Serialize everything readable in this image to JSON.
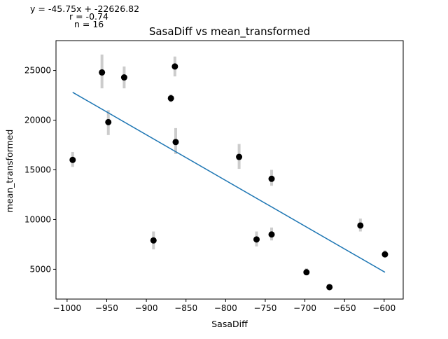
{
  "chart_data": {
    "type": "scatter",
    "title": "SasaDiff vs mean_transformed",
    "xlabel": "SasaDiff",
    "ylabel": "mean_transformed",
    "annotations": [
      "y = -45.75x + -22626.82",
      "r = -0.74",
      "n = 16"
    ],
    "xlim": [
      -1014,
      -576
    ],
    "ylim": [
      2000,
      28000
    ],
    "xticks": [
      -1000,
      -950,
      -900,
      -850,
      -800,
      -750,
      -700,
      -650,
      -600
    ],
    "xtick_labels": [
      "−1000",
      "−950",
      "−900",
      "−850",
      "−800",
      "−750",
      "−700",
      "−650",
      "−600"
    ],
    "yticks": [
      5000,
      10000,
      15000,
      20000,
      25000
    ],
    "ytick_labels": [
      "5000",
      "10000",
      "15000",
      "20000",
      "25000"
    ],
    "grid": false,
    "points": [
      {
        "x": -993,
        "y": 16000,
        "err_low": 15300,
        "err_high": 16800
      },
      {
        "x": -956,
        "y": 24800,
        "err_low": 23200,
        "err_high": 26600
      },
      {
        "x": -948,
        "y": 19800,
        "err_low": 18500,
        "err_high": 21000
      },
      {
        "x": -928,
        "y": 24300,
        "err_low": 23200,
        "err_high": 25400
      },
      {
        "x": -891,
        "y": 7900,
        "err_low": 7000,
        "err_high": 8800
      },
      {
        "x": -869,
        "y": 22200,
        "err_low": 21800,
        "err_high": 22600
      },
      {
        "x": -864,
        "y": 25400,
        "err_low": 24400,
        "err_high": 26400
      },
      {
        "x": -863,
        "y": 17800,
        "err_low": 16600,
        "err_high": 19200
      },
      {
        "x": -783,
        "y": 16300,
        "err_low": 15100,
        "err_high": 17600
      },
      {
        "x": -761,
        "y": 8000,
        "err_low": 7300,
        "err_high": 8800
      },
      {
        "x": -742,
        "y": 14100,
        "err_low": 13400,
        "err_high": 15000
      },
      {
        "x": -742,
        "y": 8500,
        "err_low": 7900,
        "err_high": 9200
      },
      {
        "x": -698,
        "y": 4700,
        "err_low": 4400,
        "err_high": 5100
      },
      {
        "x": -669,
        "y": 3200,
        "err_low": 3000,
        "err_high": 3400
      },
      {
        "x": -630,
        "y": 9400,
        "err_low": 8800,
        "err_high": 10100
      },
      {
        "x": -599,
        "y": 6500,
        "err_low": 6200,
        "err_high": 6900
      }
    ],
    "fit_line": {
      "x": [
        -993,
        -599
      ],
      "y": [
        22800,
        4700
      ]
    },
    "colors": {
      "points": "#000000",
      "errorbars": "#cccccc",
      "fit": "#1f77b4"
    }
  }
}
